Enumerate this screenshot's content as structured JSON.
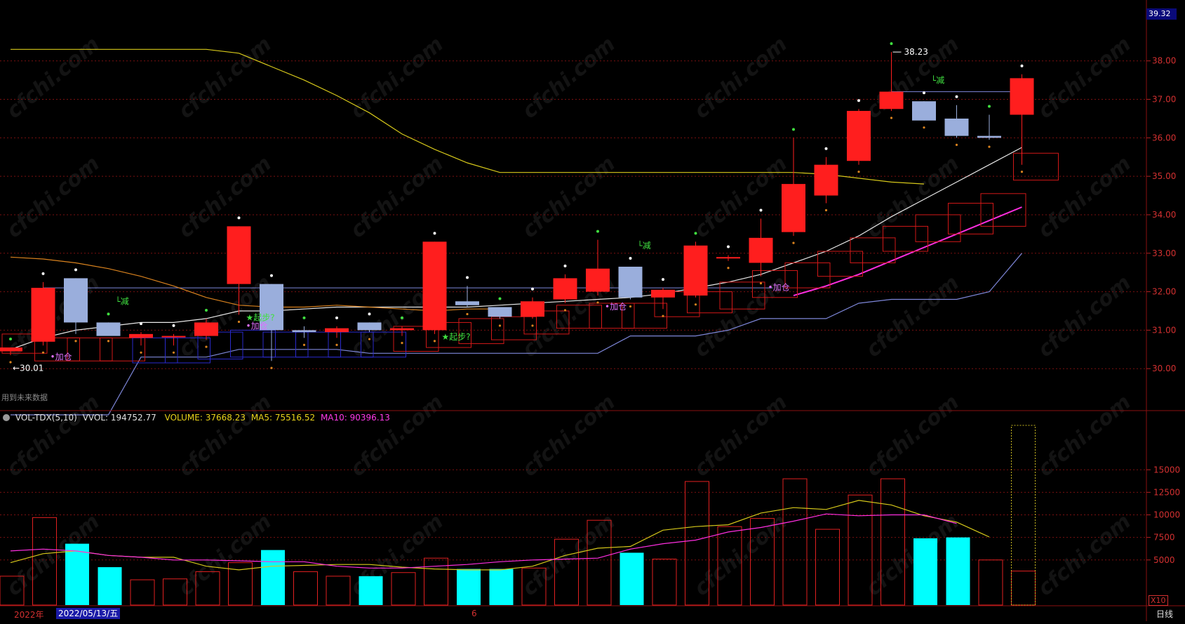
{
  "meta": {
    "watermark": "cfchi.com",
    "future_data_note": "用到未来数据",
    "period_label": "日线",
    "multiplier_label": "X10",
    "right_top_price": "39.32",
    "colors": {
      "background": "#000000",
      "up": "#ff1e1e",
      "down": "#9aaedc",
      "cyan_volume": "#00ffff",
      "ma_white": "#e8e8e8",
      "ma_yellow": "#d6c81a",
      "ma_orange": "#d9821e",
      "ma_blue": "#7d86d8",
      "ma_magenta": "#ff2ee0",
      "grid": "#7a1010",
      "axis_text": "#d23030",
      "signal_green": "#40e040",
      "signal_magenta": "#e070ff"
    }
  },
  "price_axis": {
    "ticks": [
      "38.00",
      "37.00",
      "36.00",
      "35.00",
      "34.00",
      "33.00",
      "32.00",
      "31.00",
      "30.00"
    ]
  },
  "volume_axis": {
    "ticks": [
      "15000",
      "12500",
      "10000",
      "7500",
      "5000"
    ]
  },
  "indicator_header": {
    "name": "VOL-TDX(5,10)",
    "vvol": "VVOL: 194752.77",
    "volume": "VOLUME: 37668.23",
    "ma5": "MA5: 75516.52",
    "ma10": "MA10: 90396.13"
  },
  "date_axis": {
    "year_label": "2022年",
    "cursor_date": "2022/05/13/五",
    "month_marker": "6"
  },
  "annotations": {
    "low_price": "←30.01",
    "high_price": "38.23",
    "signals": [
      {
        "text": "加仓",
        "kind": "add",
        "candle": 1
      },
      {
        "text": "减",
        "kind": "reduce",
        "candle": 3
      },
      {
        "text": "起步?",
        "kind": "start",
        "candle": 7
      },
      {
        "text": "加仓",
        "kind": "add",
        "candle": 7
      },
      {
        "text": "起步?",
        "kind": "start",
        "candle": 13
      },
      {
        "text": "加仓",
        "kind": "add",
        "candle": 18
      },
      {
        "text": "减",
        "kind": "reduce",
        "candle": 19
      },
      {
        "text": "加仓",
        "kind": "add",
        "candle": 23
      },
      {
        "text": "减",
        "kind": "reduce",
        "candle": 28
      }
    ]
  },
  "chart_data": {
    "type": "candlestick",
    "ylim": [
      29.0,
      39.4
    ],
    "candles": [
      {
        "o": 30.45,
        "h": 30.55,
        "l": 30.35,
        "c": 30.55
      },
      {
        "o": 30.7,
        "h": 32.25,
        "l": 30.6,
        "c": 32.1
      },
      {
        "o": 32.35,
        "h": 32.35,
        "l": 30.9,
        "c": 31.2
      },
      {
        "o": 31.2,
        "h": 31.2,
        "l": 30.9,
        "c": 30.85
      },
      {
        "o": 30.8,
        "h": 30.95,
        "l": 30.6,
        "c": 30.9
      },
      {
        "o": 30.85,
        "h": 30.9,
        "l": 30.6,
        "c": 30.85
      },
      {
        "o": 30.85,
        "h": 31.3,
        "l": 30.75,
        "c": 31.2
      },
      {
        "o": 32.2,
        "h": 33.7,
        "l": 31.4,
        "c": 33.7
      },
      {
        "o": 32.2,
        "h": 32.2,
        "l": 30.2,
        "c": 31.0
      },
      {
        "o": 31.0,
        "h": 31.1,
        "l": 30.8,
        "c": 30.95
      },
      {
        "o": 30.95,
        "h": 31.1,
        "l": 30.8,
        "c": 31.05
      },
      {
        "o": 31.2,
        "h": 31.2,
        "l": 30.95,
        "c": 31.0
      },
      {
        "o": 31.0,
        "h": 31.1,
        "l": 30.85,
        "c": 31.05
      },
      {
        "o": 31.0,
        "h": 33.3,
        "l": 30.9,
        "c": 33.3
      },
      {
        "o": 31.75,
        "h": 32.15,
        "l": 31.6,
        "c": 31.65
      },
      {
        "o": 31.6,
        "h": 31.6,
        "l": 31.3,
        "c": 31.35
      },
      {
        "o": 31.35,
        "h": 31.85,
        "l": 31.3,
        "c": 31.75
      },
      {
        "o": 31.8,
        "h": 32.45,
        "l": 31.7,
        "c": 32.35
      },
      {
        "o": 32.0,
        "h": 33.35,
        "l": 31.9,
        "c": 32.6
      },
      {
        "o": 32.65,
        "h": 32.65,
        "l": 31.8,
        "c": 31.85
      },
      {
        "o": 31.85,
        "h": 32.1,
        "l": 31.55,
        "c": 32.05
      },
      {
        "o": 31.9,
        "h": 33.3,
        "l": 31.85,
        "c": 33.2
      },
      {
        "o": 32.9,
        "h": 32.95,
        "l": 32.8,
        "c": 32.9
      },
      {
        "o": 32.75,
        "h": 33.9,
        "l": 32.4,
        "c": 33.4
      },
      {
        "o": 33.55,
        "h": 36.0,
        "l": 33.45,
        "c": 34.8
      },
      {
        "o": 34.5,
        "h": 35.5,
        "l": 34.3,
        "c": 35.3
      },
      {
        "o": 35.4,
        "h": 36.75,
        "l": 35.3,
        "c": 36.7
      },
      {
        "o": 36.75,
        "h": 38.23,
        "l": 36.7,
        "c": 37.2
      },
      {
        "o": 36.95,
        "h": 36.95,
        "l": 36.45,
        "c": 36.45
      },
      {
        "o": 36.5,
        "h": 36.85,
        "l": 36.0,
        "c": 36.05
      },
      {
        "o": 36.05,
        "h": 36.6,
        "l": 35.95,
        "c": 36.0
      },
      {
        "o": 36.6,
        "h": 37.65,
        "l": 35.3,
        "c": 37.55
      }
    ],
    "future_candles": [
      {
        "o": 30.4,
        "h": 30.9,
        "l": 30.2,
        "c": 30.9
      },
      {
        "o": 30.2,
        "h": 30.8,
        "l": 30.2,
        "c": 30.8
      },
      {
        "o": 30.2,
        "h": 30.8,
        "l": 30.2,
        "c": 30.8
      },
      {
        "o": 30.2,
        "h": 30.8,
        "l": 30.2,
        "c": 30.8
      },
      {
        "o": 30.15,
        "h": 30.8,
        "l": 30.15,
        "c": 30.8
      },
      {
        "o": 30.15,
        "h": 30.8,
        "l": 30.15,
        "c": 30.8
      },
      {
        "o": 30.25,
        "h": 30.95,
        "l": 30.25,
        "c": 30.95
      },
      {
        "o": 30.3,
        "h": 31.0,
        "l": 30.3,
        "c": 31.0
      },
      {
        "o": 30.3,
        "h": 30.95,
        "l": 30.3,
        "c": 30.95
      },
      {
        "o": 30.3,
        "h": 30.95,
        "l": 30.3,
        "c": 30.95
      },
      {
        "o": 30.3,
        "h": 30.95,
        "l": 30.3,
        "c": 30.95
      },
      {
        "o": 30.3,
        "h": 30.95,
        "l": 30.3,
        "c": 30.95
      },
      {
        "o": 30.45,
        "h": 31.1,
        "l": 30.45,
        "c": 31.1
      },
      {
        "o": 30.55,
        "h": 31.2,
        "l": 30.55,
        "c": 31.2
      },
      {
        "o": 30.65,
        "h": 31.3,
        "l": 30.65,
        "c": 31.3
      },
      {
        "o": 30.75,
        "h": 31.35,
        "l": 30.75,
        "c": 31.35
      },
      {
        "o": 30.9,
        "h": 31.5,
        "l": 30.9,
        "c": 31.5
      },
      {
        "o": 31.05,
        "h": 31.65,
        "l": 31.05,
        "c": 31.65
      },
      {
        "o": 31.05,
        "h": 31.7,
        "l": 31.05,
        "c": 31.7
      },
      {
        "o": 31.05,
        "h": 31.7,
        "l": 31.05,
        "c": 31.7
      },
      {
        "o": 31.35,
        "h": 32.0,
        "l": 31.35,
        "c": 32.0
      },
      {
        "o": 31.45,
        "h": 32.0,
        "l": 31.45,
        "c": 32.0
      },
      {
        "o": 31.55,
        "h": 32.25,
        "l": 31.55,
        "c": 32.25
      },
      {
        "o": 31.85,
        "h": 32.55,
        "l": 31.85,
        "c": 32.55
      },
      {
        "o": 32.1,
        "h": 32.75,
        "l": 32.1,
        "c": 32.75
      },
      {
        "o": 32.4,
        "h": 33.05,
        "l": 32.4,
        "c": 33.05
      },
      {
        "o": 32.75,
        "h": 33.4,
        "l": 32.75,
        "c": 33.4
      },
      {
        "o": 33.05,
        "h": 33.7,
        "l": 33.05,
        "c": 33.7
      },
      {
        "o": 33.3,
        "h": 34.0,
        "l": 33.3,
        "c": 34.0
      },
      {
        "o": 33.5,
        "h": 34.3,
        "l": 33.5,
        "c": 34.3
      },
      {
        "o": 33.7,
        "h": 34.55,
        "l": 33.7,
        "c": 34.55
      },
      {
        "o": 34.9,
        "h": 35.6,
        "l": 34.9,
        "c": 35.6
      }
    ],
    "ma_series": [
      {
        "color": "#e8e8e8",
        "values": [
          30.5,
          30.8,
          31.0,
          31.1,
          31.2,
          31.2,
          31.3,
          31.5,
          31.5,
          31.55,
          31.6,
          31.6,
          31.6,
          31.6,
          31.6,
          31.65,
          31.7,
          31.75,
          31.8,
          31.85,
          31.95,
          32.1,
          32.25,
          32.45,
          32.75,
          33.05,
          33.45,
          33.95,
          34.4,
          34.85,
          35.3,
          35.75
        ]
      },
      {
        "color": "#d6c81a",
        "values": [
          38.3,
          38.3,
          38.3,
          38.3,
          38.3,
          38.3,
          38.3,
          38.2,
          37.85,
          37.5,
          37.1,
          36.65,
          36.1,
          35.7,
          35.35,
          35.1,
          35.1,
          35.1,
          35.1,
          35.1,
          35.1,
          35.1,
          35.1,
          35.1,
          35.1,
          35.05,
          34.95,
          34.85,
          34.8,
          null,
          null,
          null
        ]
      },
      {
        "color": "#d9821e",
        "values": [
          32.9,
          32.85,
          32.75,
          32.6,
          32.4,
          32.15,
          31.85,
          31.65,
          31.6,
          31.6,
          31.65,
          31.6,
          31.55,
          31.5,
          31.55,
          31.55,
          null,
          null,
          null,
          null,
          null,
          null,
          null,
          null,
          null,
          null,
          null,
          null,
          null,
          null,
          null,
          null
        ]
      },
      {
        "color": "#7d86d8",
        "values": [
          28.8,
          28.8,
          28.8,
          28.8,
          30.3,
          30.3,
          30.3,
          30.5,
          30.5,
          30.5,
          30.5,
          30.4,
          30.4,
          30.4,
          30.4,
          30.4,
          30.4,
          30.4,
          30.4,
          30.85,
          30.85,
          30.85,
          31.0,
          31.3,
          31.3,
          31.3,
          31.7,
          31.8,
          31.8,
          31.8,
          32.0,
          33.0
        ]
      },
      {
        "color": "#ff2ee0",
        "values": [
          null,
          null,
          null,
          null,
          null,
          null,
          null,
          null,
          null,
          null,
          null,
          null,
          null,
          null,
          null,
          null,
          null,
          null,
          null,
          null,
          null,
          null,
          null,
          null,
          31.9,
          32.15,
          32.45,
          32.8,
          33.15,
          33.5,
          33.85,
          34.2
        ]
      }
    ],
    "resistance_lines": [
      {
        "color": "#7d86d8",
        "y": 32.1,
        "from": 1,
        "to": 23
      },
      {
        "color": "#7d86d8",
        "y": 37.2,
        "from": 27,
        "to": 31
      }
    ],
    "volume": {
      "ylim": [
        0,
        20000
      ],
      "values": [
        3200,
        9700,
        6800,
        4200,
        2800,
        2900,
        3700,
        4700,
        6100,
        3700,
        3200,
        3200,
        3600,
        5200,
        4000,
        4000,
        4100,
        7300,
        9400,
        5800,
        5100,
        13700,
        8700,
        9600,
        14000,
        8400,
        12200,
        14000,
        7400,
        7500,
        5000,
        3768
      ],
      "bar_colors": [
        "hollow",
        "hollow",
        "cyan",
        "cyan",
        "hollow",
        "hollow",
        "hollow",
        "hollow",
        "cyan",
        "hollow",
        "hollow",
        "cyan",
        "hollow",
        "hollow",
        "cyan",
        "cyan",
        "hollow",
        "hollow",
        "hollow",
        "cyan",
        "hollow",
        "hollow",
        "hollow",
        "hollow",
        "hollow",
        "hollow",
        "hollow",
        "hollow",
        "cyan",
        "cyan",
        "hollow",
        "hollow"
      ],
      "ma5": [
        4700,
        5700,
        6000,
        5500,
        5300,
        5300,
        4300,
        3900,
        4300,
        4400,
        4500,
        4500,
        4200,
        4000,
        3900,
        3900,
        4300,
        5500,
        6300,
        6500,
        8300,
        8700,
        8900,
        10200,
        10800,
        10600,
        11600,
        11100,
        9900,
        9200,
        7550
      ],
      "ma10": [
        6000,
        6200,
        6000,
        5500,
        5300,
        5000,
        5000,
        4900,
        4800,
        4800,
        4300,
        4100,
        4100,
        4300,
        4500,
        4800,
        5000,
        5100,
        5200,
        6200,
        6800,
        7200,
        8100,
        8600,
        9300,
        10100,
        9900,
        10000,
        10000,
        9040
      ]
    }
  }
}
